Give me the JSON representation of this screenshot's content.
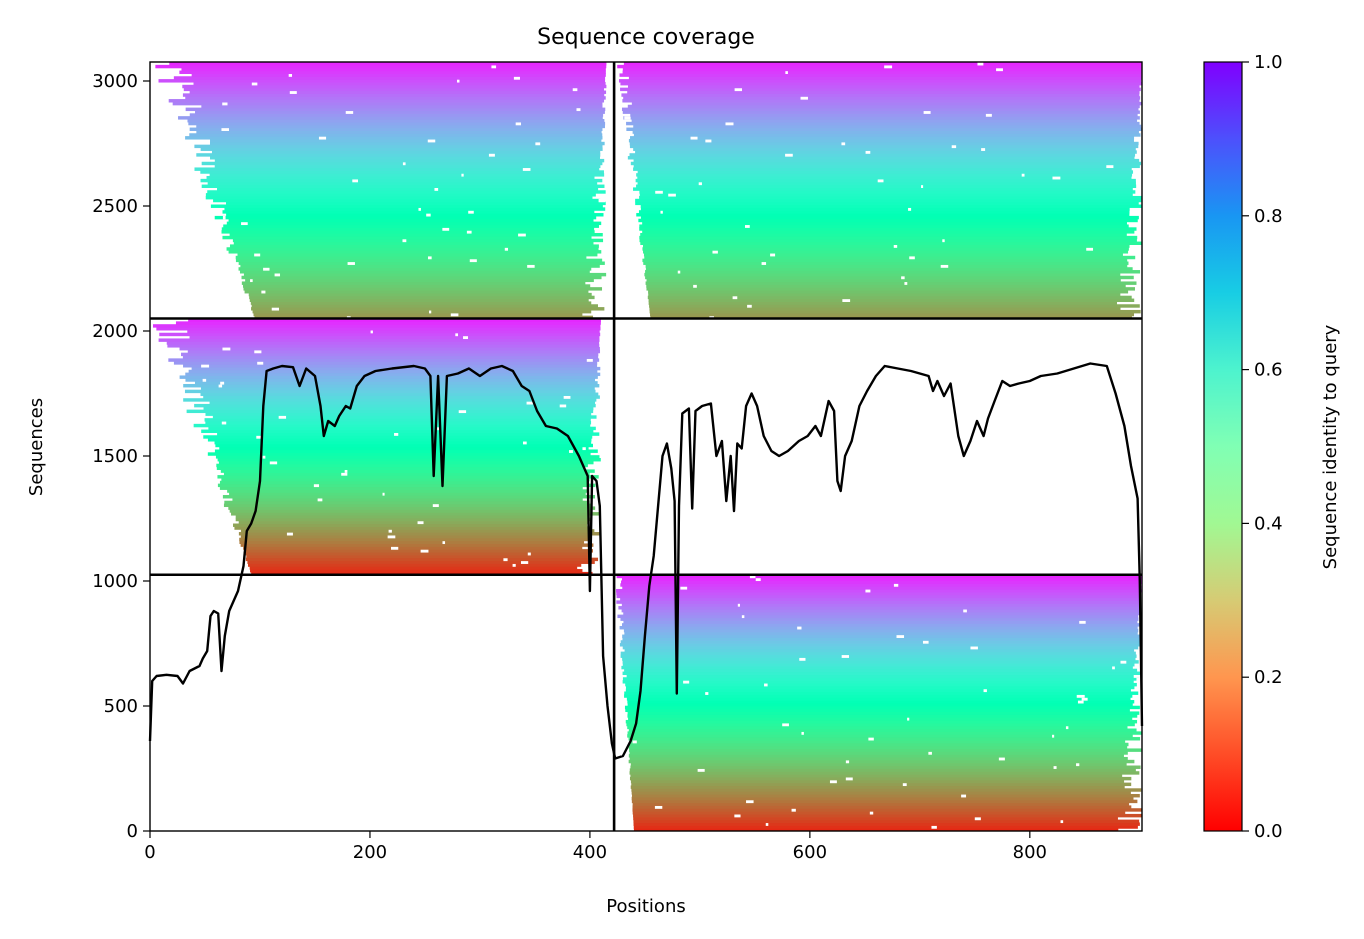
{
  "chart_data": {
    "type": "heatmap",
    "title": "Sequence coverage",
    "xlabel": "Positions",
    "ylabel": "Sequences",
    "xlim": [
      0,
      902
    ],
    "ylim": [
      0,
      3076
    ],
    "xticks": [
      0,
      200,
      400,
      600,
      800
    ],
    "yticks": [
      0,
      500,
      1000,
      1500,
      2000,
      2500,
      3000
    ],
    "grid": false,
    "colorbar": {
      "label": "Sequence identity to query",
      "range": [
        0,
        1
      ],
      "ticks": [
        0.0,
        0.2,
        0.4,
        0.6,
        0.8,
        1.0
      ],
      "tick_labels": [
        "0.0",
        "0.2",
        "0.4",
        "0.6",
        "0.8",
        "1.0"
      ],
      "colormap": "rainbow_r"
    },
    "chain_boundaries": {
      "x": [
        422
      ],
      "y": [
        1025,
        2050
      ]
    },
    "blocks": [
      {
        "x": [
          0,
          422
        ],
        "y": [
          1025,
          2050
        ],
        "dense_x": [
          92,
          410
        ],
        "identity_range": [
          0.05,
          0.95
        ]
      },
      {
        "x": [
          422,
          902
        ],
        "y": [
          0,
          1025
        ],
        "dense_x": [
          440,
          902
        ],
        "identity_range": [
          0.05,
          0.95
        ]
      },
      {
        "x": [
          0,
          422
        ],
        "y": [
          2050,
          3076
        ],
        "dense_x": [
          95,
          415
        ],
        "identity_range": [
          0.2,
          0.95
        ]
      },
      {
        "x": [
          422,
          902
        ],
        "y": [
          2050,
          3076
        ],
        "dense_x": [
          455,
          902
        ],
        "identity_range": [
          0.2,
          0.95
        ]
      }
    ],
    "series": [
      {
        "name": "coverage",
        "color": "#000000",
        "points": [
          [
            0,
            360
          ],
          [
            2,
            600
          ],
          [
            6,
            620
          ],
          [
            15,
            625
          ],
          [
            25,
            620
          ],
          [
            30,
            590
          ],
          [
            36,
            640
          ],
          [
            45,
            660
          ],
          [
            48,
            690
          ],
          [
            52,
            720
          ],
          [
            55,
            860
          ],
          [
            58,
            880
          ],
          [
            62,
            870
          ],
          [
            65,
            640
          ],
          [
            68,
            780
          ],
          [
            72,
            880
          ],
          [
            80,
            960
          ],
          [
            85,
            1060
          ],
          [
            88,
            1200
          ],
          [
            92,
            1230
          ],
          [
            96,
            1280
          ],
          [
            100,
            1400
          ],
          [
            103,
            1700
          ],
          [
            106,
            1840
          ],
          [
            112,
            1850
          ],
          [
            120,
            1860
          ],
          [
            130,
            1855
          ],
          [
            136,
            1780
          ],
          [
            142,
            1850
          ],
          [
            150,
            1820
          ],
          [
            155,
            1700
          ],
          [
            158,
            1580
          ],
          [
            162,
            1640
          ],
          [
            168,
            1620
          ],
          [
            172,
            1660
          ],
          [
            178,
            1700
          ],
          [
            182,
            1690
          ],
          [
            188,
            1780
          ],
          [
            195,
            1820
          ],
          [
            205,
            1840
          ],
          [
            220,
            1850
          ],
          [
            240,
            1860
          ],
          [
            250,
            1850
          ],
          [
            255,
            1820
          ],
          [
            258,
            1420
          ],
          [
            262,
            1820
          ],
          [
            266,
            1380
          ],
          [
            270,
            1820
          ],
          [
            280,
            1830
          ],
          [
            290,
            1850
          ],
          [
            300,
            1820
          ],
          [
            310,
            1850
          ],
          [
            320,
            1860
          ],
          [
            330,
            1840
          ],
          [
            338,
            1780
          ],
          [
            345,
            1760
          ],
          [
            352,
            1680
          ],
          [
            360,
            1620
          ],
          [
            370,
            1610
          ],
          [
            380,
            1580
          ],
          [
            390,
            1500
          ],
          [
            398,
            1420
          ],
          [
            400,
            960
          ],
          [
            402,
            1420
          ],
          [
            406,
            1400
          ],
          [
            409,
            1300
          ],
          [
            412,
            700
          ],
          [
            416,
            500
          ],
          [
            420,
            350
          ],
          [
            423,
            290
          ],
          [
            430,
            300
          ],
          [
            437,
            360
          ],
          [
            442,
            430
          ],
          [
            446,
            560
          ],
          [
            450,
            780
          ],
          [
            454,
            980
          ],
          [
            458,
            1100
          ],
          [
            462,
            1300
          ],
          [
            466,
            1500
          ],
          [
            470,
            1550
          ],
          [
            474,
            1450
          ],
          [
            477,
            1320
          ],
          [
            479,
            550
          ],
          [
            481,
            1300
          ],
          [
            484,
            1670
          ],
          [
            490,
            1690
          ],
          [
            493,
            1290
          ],
          [
            496,
            1680
          ],
          [
            502,
            1700
          ],
          [
            510,
            1710
          ],
          [
            515,
            1500
          ],
          [
            520,
            1560
          ],
          [
            524,
            1320
          ],
          [
            528,
            1500
          ],
          [
            531,
            1280
          ],
          [
            534,
            1550
          ],
          [
            538,
            1530
          ],
          [
            542,
            1700
          ],
          [
            547,
            1750
          ],
          [
            552,
            1700
          ],
          [
            558,
            1580
          ],
          [
            565,
            1520
          ],
          [
            572,
            1500
          ],
          [
            580,
            1520
          ],
          [
            590,
            1560
          ],
          [
            598,
            1580
          ],
          [
            605,
            1620
          ],
          [
            610,
            1580
          ],
          [
            617,
            1720
          ],
          [
            622,
            1680
          ],
          [
            625,
            1400
          ],
          [
            628,
            1360
          ],
          [
            632,
            1500
          ],
          [
            638,
            1560
          ],
          [
            645,
            1700
          ],
          [
            652,
            1760
          ],
          [
            660,
            1820
          ],
          [
            668,
            1860
          ],
          [
            680,
            1850
          ],
          [
            692,
            1840
          ],
          [
            700,
            1830
          ],
          [
            708,
            1820
          ],
          [
            712,
            1760
          ],
          [
            716,
            1800
          ],
          [
            722,
            1740
          ],
          [
            728,
            1790
          ],
          [
            735,
            1580
          ],
          [
            740,
            1500
          ],
          [
            746,
            1560
          ],
          [
            752,
            1640
          ],
          [
            758,
            1580
          ],
          [
            762,
            1650
          ],
          [
            768,
            1720
          ],
          [
            775,
            1800
          ],
          [
            782,
            1780
          ],
          [
            790,
            1790
          ],
          [
            800,
            1800
          ],
          [
            810,
            1820
          ],
          [
            825,
            1830
          ],
          [
            840,
            1850
          ],
          [
            855,
            1870
          ],
          [
            870,
            1860
          ],
          [
            878,
            1750
          ],
          [
            886,
            1620
          ],
          [
            892,
            1460
          ],
          [
            898,
            1330
          ],
          [
            900,
            1000
          ],
          [
            902,
            420
          ]
        ]
      }
    ]
  }
}
